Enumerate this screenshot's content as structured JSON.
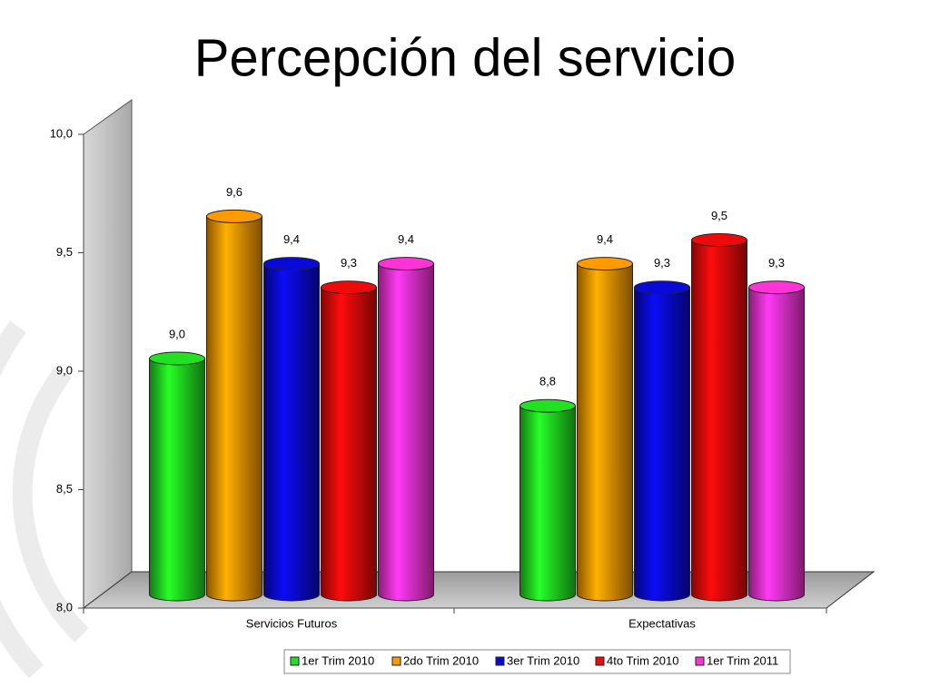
{
  "chart_data": {
    "type": "bar",
    "title": "Percepción del servicio",
    "categories": [
      "Servicios Futuros",
      "Expectativas"
    ],
    "series": [
      {
        "name": "1er Trim 2010",
        "color": "#22e022",
        "values": [
          9.0,
          8.8
        ],
        "value_labels": [
          "9,0",
          "8,8"
        ]
      },
      {
        "name": "2do Trim 2010",
        "color": "#ff9a00",
        "values": [
          9.6,
          9.4
        ],
        "value_labels": [
          "9,6",
          "9,4"
        ]
      },
      {
        "name": "3er Trim 2010",
        "color": "#0a0ad8",
        "values": [
          9.4,
          9.3
        ],
        "value_labels": [
          "9,4",
          "9,3"
        ]
      },
      {
        "name": "4to Trim 2010",
        "color": "#ee0a0a",
        "values": [
          9.3,
          9.5
        ],
        "value_labels": [
          "9,3",
          "9,5"
        ]
      },
      {
        "name": "1er Trim 2011",
        "color": "#ff33d6",
        "values": [
          9.4,
          9.3
        ],
        "value_labels": [
          "9,4",
          "9,3"
        ]
      }
    ],
    "ylim": [
      8.0,
      10.0
    ],
    "yticks": [
      {
        "value": 8.0,
        "label": "8,0"
      },
      {
        "value": 8.5,
        "label": "8,5"
      },
      {
        "value": 9.0,
        "label": "9,0"
      },
      {
        "value": 9.5,
        "label": "9,5"
      },
      {
        "value": 10.0,
        "label": "10,0"
      }
    ],
    "legend": "bottom"
  }
}
